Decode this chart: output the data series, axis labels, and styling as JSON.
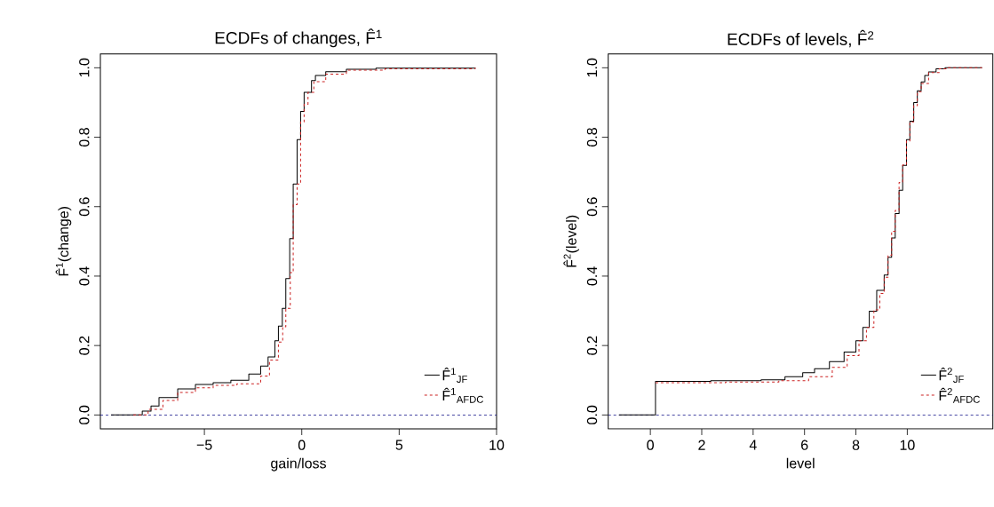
{
  "chart_data": [
    {
      "type": "step",
      "title": "ECDFs of changes, F̂$^{1}$",
      "xlabel": "gain/loss",
      "ylabel": "F̂$^{1}$(change)",
      "xlim": [
        -10.34,
        10.0
      ],
      "ylim": [
        -0.04,
        1.04
      ],
      "xticks": [
        {
          "value": -5,
          "label": "−5"
        },
        0,
        5,
        10
      ],
      "yticks": [
        {
          "value": 0,
          "label": "0.0"
        },
        {
          "value": 0.2,
          "label": "0.2"
        },
        {
          "value": 0.4,
          "label": "0.4"
        },
        {
          "value": 0.6,
          "label": "0.6"
        },
        {
          "value": 0.8,
          "label": "0.8"
        },
        {
          "value": 1,
          "label": "1.0"
        }
      ],
      "legend": "bottom right",
      "ref_lines": [
        {
          "axis": "y",
          "value": 0,
          "color": "#000080",
          "line_style": "dashed"
        }
      ],
      "series": [
        {
          "name": "F̂$^{1}$$_{JF}$",
          "color": "#000000",
          "line_style": "solid",
          "x": [
            -9.79,
            -8.65,
            -8.19,
            -7.74,
            -7.33,
            -6.37,
            -5.46,
            -4.55,
            -3.64,
            -2.72,
            -2.11,
            -1.73,
            -1.38,
            -1.2,
            -1.0,
            -0.82,
            -0.62,
            -0.44,
            -0.24,
            -0.06,
            0.12,
            0.5,
            0.7,
            1.23,
            2.29,
            3.81,
            8.9
          ],
          "values": [
            0,
            0,
            0.011,
            0.026,
            0.05,
            0.075,
            0.088,
            0.093,
            0.1,
            0.118,
            0.141,
            0.167,
            0.214,
            0.256,
            0.307,
            0.393,
            0.508,
            0.665,
            0.793,
            0.874,
            0.929,
            0.963,
            0.978,
            0.989,
            0.996,
            0.999,
            1.0
          ]
        },
        {
          "name": "F̂$^{1}$$_{AFDC}$",
          "color": "#cc2222",
          "line_style": "dashed",
          "x": [
            -8.65,
            -7.89,
            -7.13,
            -6.37,
            -5.46,
            -4.55,
            -3.33,
            -2.11,
            -1.66,
            -1.2,
            -0.98,
            -0.82,
            -0.59,
            -0.44,
            -0.24,
            -0.06,
            0.12,
            0.32,
            0.62,
            1.23,
            2.29,
            4.27,
            8.9
          ],
          "values": [
            0,
            0.016,
            0.042,
            0.065,
            0.078,
            0.085,
            0.09,
            0.112,
            0.158,
            0.21,
            0.254,
            0.307,
            0.41,
            0.606,
            0.665,
            0.844,
            0.895,
            0.929,
            0.96,
            0.982,
            0.993,
            0.997,
            1.0
          ]
        }
      ]
    },
    {
      "type": "step",
      "title": "ECDFs of levels, F̂$^{2}$",
      "xlabel": "level",
      "ylabel": "F̂$^{2}$(level)",
      "xlim": [
        -1.64,
        13.33
      ],
      "ylim": [
        -0.04,
        1.04
      ],
      "xticks": [
        0,
        2,
        4,
        6,
        8,
        10
      ],
      "yticks": [
        {
          "value": 0,
          "label": "0.0"
        },
        {
          "value": 0.2,
          "label": "0.2"
        },
        {
          "value": 0.4,
          "label": "0.4"
        },
        {
          "value": 0.6,
          "label": "0.6"
        },
        {
          "value": 0.8,
          "label": "0.8"
        },
        {
          "value": 1,
          "label": "1.0"
        }
      ],
      "legend": "bottom right",
      "ref_lines": [
        {
          "axis": "y",
          "value": 0,
          "color": "#000080",
          "line_style": "dashed"
        }
      ],
      "series": [
        {
          "name": "F̂$^{2}$$_{JF}$",
          "color": "#000000",
          "line_style": "solid",
          "x": [
            -1.22,
            0.2,
            2.35,
            4.31,
            5.24,
            5.93,
            6.39,
            6.97,
            7.54,
            8.0,
            8.27,
            8.52,
            8.81,
            9.1,
            9.25,
            9.39,
            9.53,
            9.68,
            9.82,
            9.97,
            10.1,
            10.25,
            10.39,
            10.54,
            10.68,
            10.83,
            11.12,
            11.47,
            12.91
          ],
          "values": [
            0,
            0.097,
            0.099,
            0.101,
            0.11,
            0.122,
            0.133,
            0.154,
            0.181,
            0.214,
            0.252,
            0.299,
            0.359,
            0.403,
            0.454,
            0.51,
            0.58,
            0.647,
            0.719,
            0.793,
            0.846,
            0.9,
            0.934,
            0.959,
            0.978,
            0.988,
            0.997,
            1.0,
            1.0
          ]
        },
        {
          "name": "F̂$^{2}$$_{AFDC}$",
          "color": "#cc2222",
          "line_style": "dashed",
          "x": [
            0.2,
            2.93,
            5.0,
            6.16,
            7.08,
            7.66,
            8.12,
            8.41,
            8.7,
            8.93,
            9.1,
            9.25,
            9.39,
            9.53,
            9.68,
            9.82,
            9.97,
            10.1,
            10.25,
            10.39,
            10.54,
            10.83,
            11.24,
            11.59,
            12.91
          ],
          "values": [
            0.093,
            0.095,
            0.099,
            0.11,
            0.137,
            0.171,
            0.214,
            0.252,
            0.303,
            0.35,
            0.397,
            0.46,
            0.529,
            0.589,
            0.67,
            0.72,
            0.789,
            0.844,
            0.891,
            0.931,
            0.955,
            0.986,
            0.997,
            1.0,
            1.0
          ]
        }
      ]
    }
  ]
}
